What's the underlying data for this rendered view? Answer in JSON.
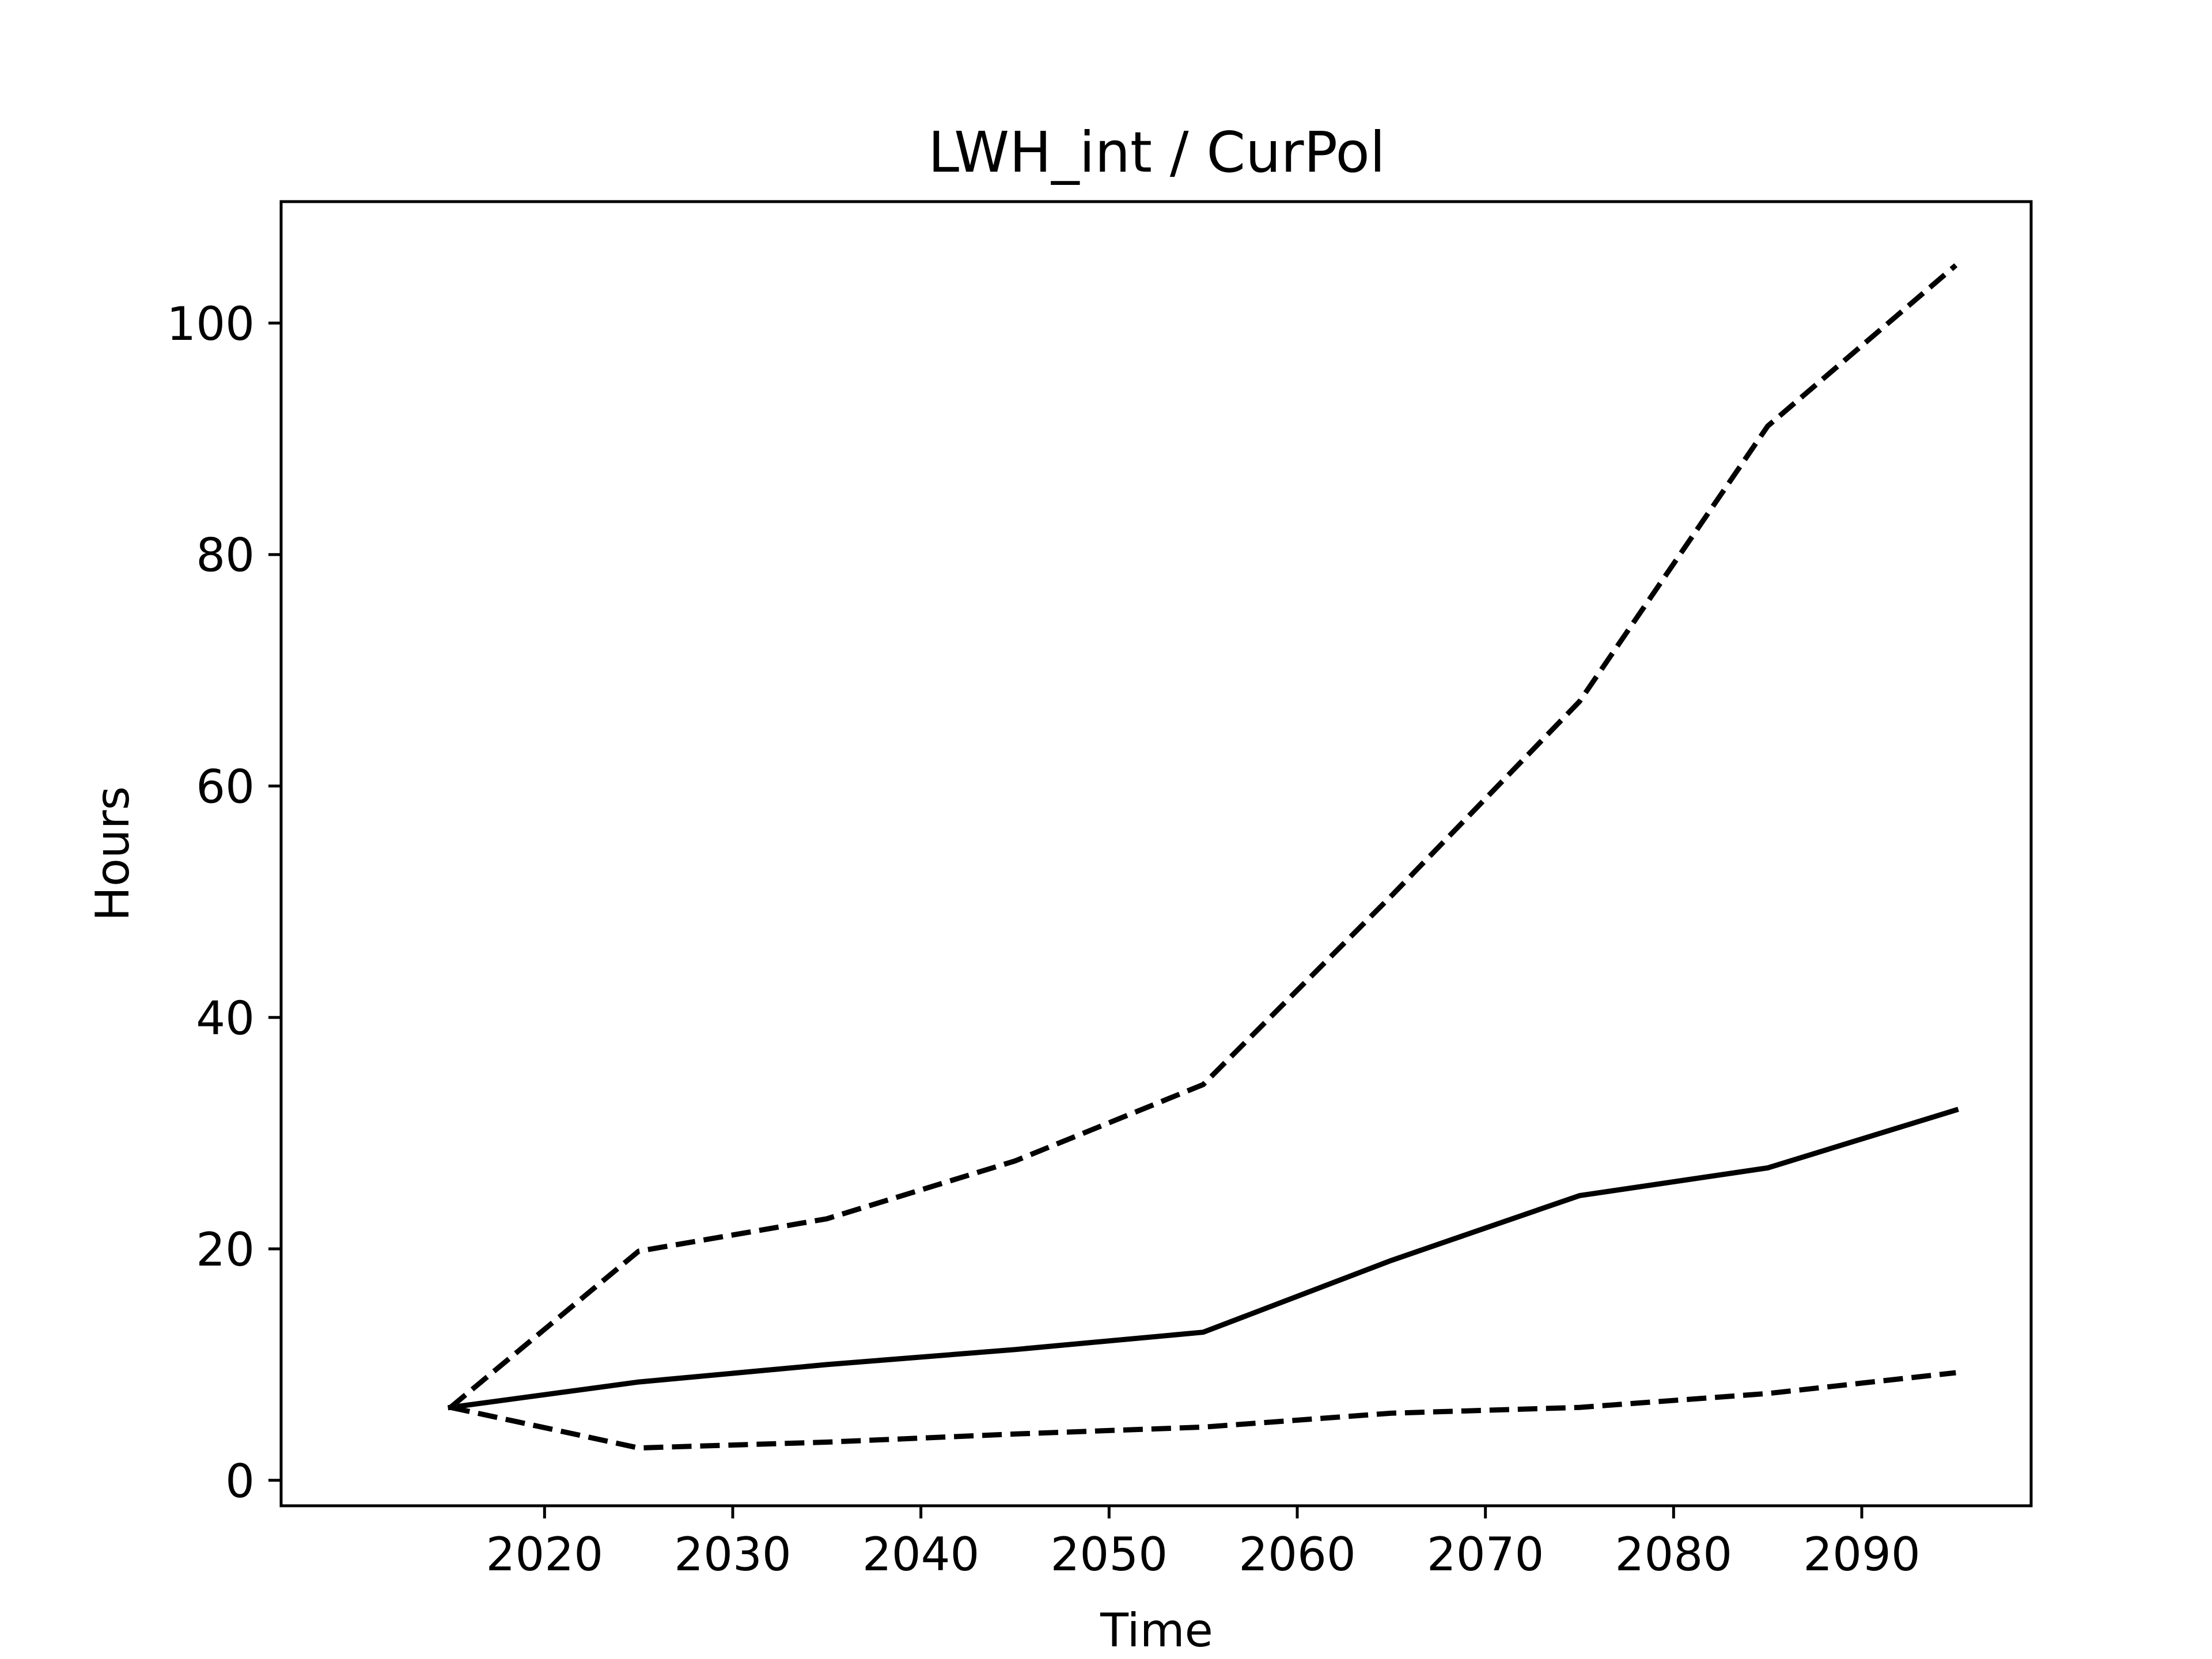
{
  "chart_data": {
    "type": "line",
    "title": "LWH_int / CurPol",
    "xlabel": "Time",
    "ylabel": "Hours",
    "x": [
      2015,
      2025,
      2035,
      2045,
      2055,
      2065,
      2075,
      2085,
      2095
    ],
    "xlim": [
      2006,
      2099
    ],
    "ylim": [
      -2.2,
      110.5
    ],
    "xticks": [
      2020,
      2030,
      2040,
      2050,
      2060,
      2070,
      2080,
      2090
    ],
    "yticks": [
      0,
      20,
      40,
      60,
      80,
      100
    ],
    "grid": false,
    "legend": "none",
    "series": [
      {
        "style": "solid",
        "color": "#000000",
        "values": [
          6.3,
          8.5,
          10.0,
          11.3,
          12.8,
          19.0,
          24.6,
          27.0,
          32.0
        ]
      },
      {
        "style": "dashed",
        "color": "#000000",
        "values": [
          6.3,
          19.8,
          22.6,
          27.6,
          34.2,
          50.5,
          67.3,
          91.1,
          105.0
        ]
      },
      {
        "style": "dashed",
        "color": "#000000",
        "values": [
          6.3,
          2.8,
          3.3,
          4.0,
          4.6,
          5.8,
          6.3,
          7.5,
          9.3
        ]
      }
    ]
  }
}
